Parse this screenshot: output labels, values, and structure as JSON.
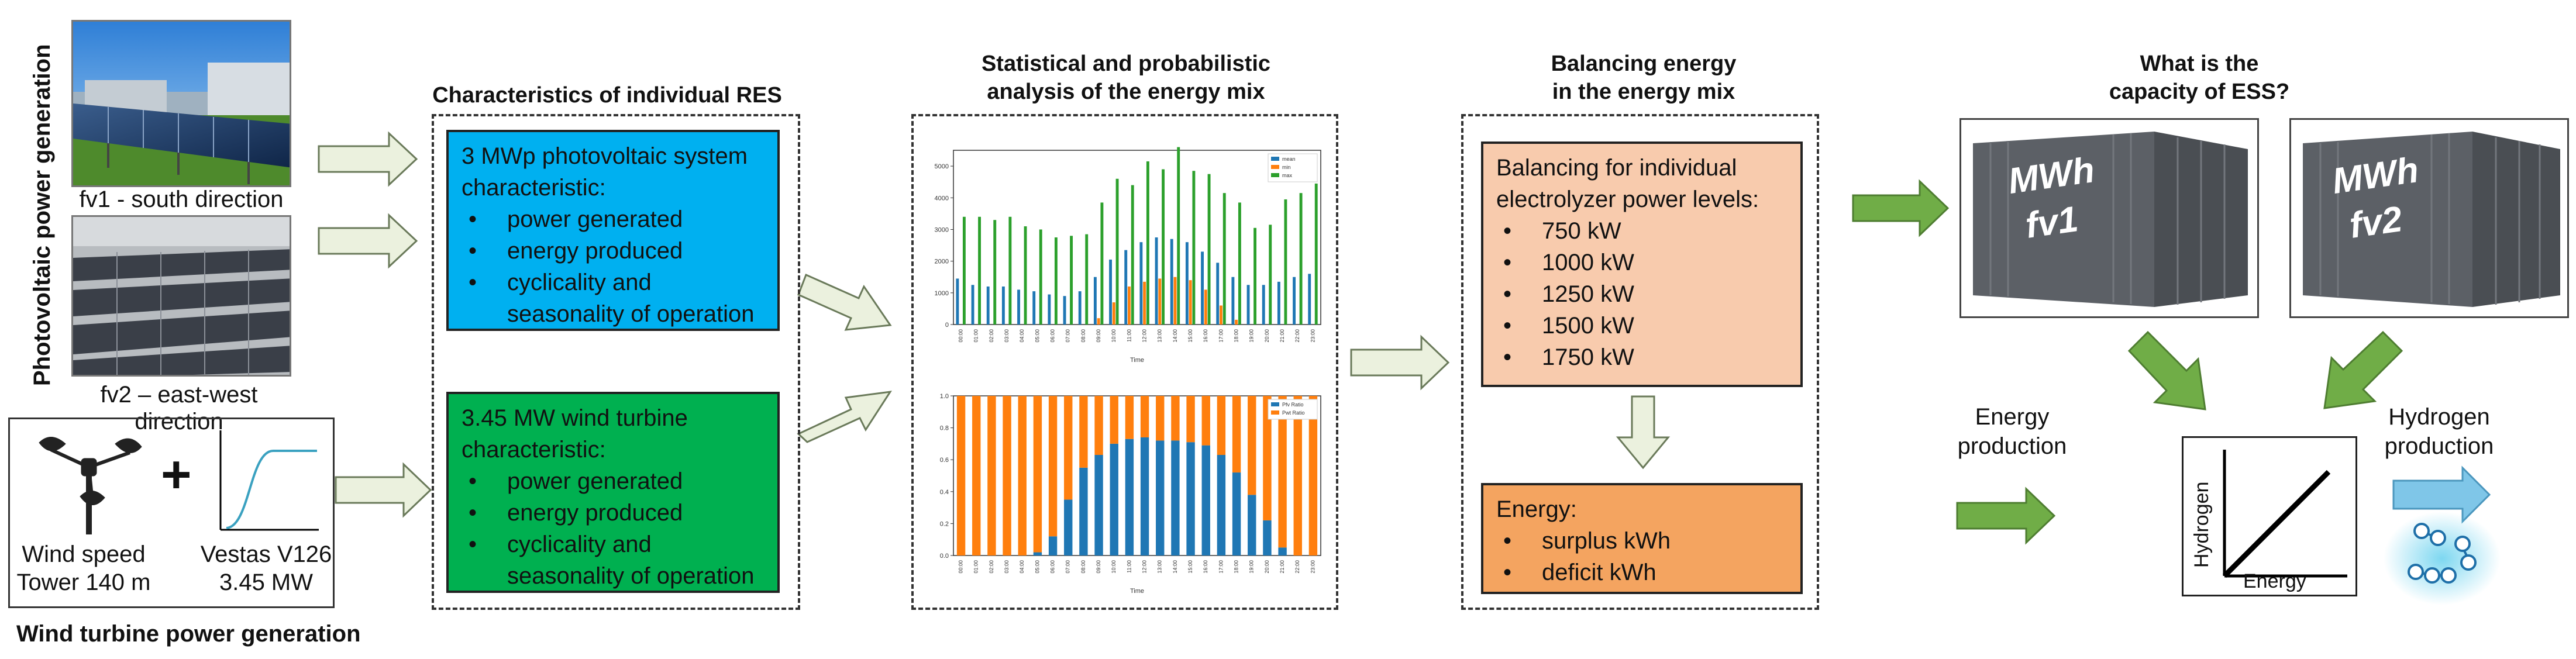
{
  "left_side": {
    "vertical_label": "Photovoltaic power generation",
    "photo1_caption": "fv1 - south direction",
    "photo2_caption": "fv2 – east-west direction",
    "wind_speed_label": "Wind speed",
    "tower_label": "Tower 140 m",
    "plus_symbol": "+",
    "turbine_model": "Vestas V126",
    "turbine_power": "3.45 MW",
    "wind_generation_label": "Wind turbine power generation"
  },
  "res_section": {
    "title": "Characteristics of individual RES",
    "pv_box": {
      "heading": "3 MWp photovoltaic system characteristic:",
      "items": [
        "power generated",
        "energy produced",
        "cyclicality and seasonality of operation"
      ],
      "color": "#00b0f0"
    },
    "wind_box": {
      "heading": "3.45 MW wind turbine characteristic:",
      "items": [
        "power generated",
        "energy produced",
        "cyclicality and seasonality of operation"
      ],
      "color": "#00b050"
    }
  },
  "analysis_section": {
    "title_line1": "Statistical and probabilistic",
    "title_line2": "analysis of the energy mix"
  },
  "balancing_section": {
    "title_line1": "Balancing energy",
    "title_line2": "in the energy mix",
    "levels_box": {
      "heading": "Balancing for individual electrolyzer power levels:",
      "items": [
        "750 kW",
        "1000 kW",
        "1250 kW",
        "1500 kW",
        "1750 kW"
      ],
      "color": "#f8cbad"
    },
    "energy_box": {
      "heading": "Energy:",
      "items": [
        "surplus kWh",
        "deficit kWh"
      ],
      "color": "#f4a460"
    }
  },
  "ess_section": {
    "title_line1": "What is the",
    "title_line2": "capacity of ESS?",
    "container1_line1": "MWh",
    "container1_line2": "fv1",
    "container2_line1": "MWh",
    "container2_line2": "fv2",
    "energy_production_line1": "Energy",
    "energy_production_line2": "production",
    "hydrogen_production_line1": "Hydrogen",
    "hydrogen_production_line2": "production",
    "plot_ylabel": "Hydrogen",
    "plot_xlabel": "Energy"
  },
  "chart_data": [
    {
      "type": "bar",
      "title": "",
      "xlabel": "Time",
      "ylabel": "",
      "ylim": [
        0,
        5500
      ],
      "yticks": [
        0,
        1000,
        2000,
        3000,
        4000,
        5000
      ],
      "legend": [
        "mean",
        "min",
        "max"
      ],
      "legend_position": "top-right",
      "colors": [
        "#1f77b4",
        "#ff7f0e",
        "#2ca02c"
      ],
      "categories": [
        "00:00",
        "01:00",
        "02:00",
        "03:00",
        "04:00",
        "05:00",
        "06:00",
        "07:00",
        "08:00",
        "09:00",
        "10:00",
        "11:00",
        "12:00",
        "13:00",
        "14:00",
        "15:00",
        "16:00",
        "17:00",
        "18:00",
        "19:00",
        "20:00",
        "21:00",
        "22:00",
        "23:00"
      ],
      "series": [
        {
          "name": "mean",
          "values": [
            1450,
            1250,
            1200,
            1200,
            1100,
            1050,
            950,
            900,
            1050,
            1500,
            2050,
            2350,
            2600,
            2750,
            2700,
            2600,
            2300,
            1950,
            1500,
            1250,
            1250,
            1350,
            1500,
            1600
          ]
        },
        {
          "name": "min",
          "values": [
            0,
            0,
            0,
            0,
            0,
            0,
            0,
            0,
            0,
            200,
            700,
            1200,
            1350,
            1450,
            1500,
            1400,
            1100,
            600,
            150,
            0,
            0,
            0,
            0,
            0
          ]
        },
        {
          "name": "max",
          "values": [
            3400,
            3400,
            3300,
            3400,
            3100,
            3000,
            2750,
            2800,
            2850,
            3850,
            4600,
            4400,
            5150,
            4900,
            5600,
            4850,
            4750,
            4150,
            3850,
            3050,
            3150,
            3950,
            4150,
            4450
          ]
        }
      ]
    },
    {
      "type": "bar",
      "stacked": true,
      "title": "",
      "xlabel": "Time",
      "ylabel": "",
      "ylim": [
        0,
        1.0
      ],
      "yticks": [
        0.0,
        0.2,
        0.4,
        0.6,
        0.8,
        1.0
      ],
      "legend": [
        "Pfv Ratio",
        "Pwt Ratio"
      ],
      "legend_position": "top-right",
      "colors": [
        "#1f77b4",
        "#ff7f0e"
      ],
      "categories": [
        "00:00",
        "01:00",
        "02:00",
        "03:00",
        "04:00",
        "05:00",
        "06:00",
        "07:00",
        "08:00",
        "09:00",
        "10:00",
        "11:00",
        "12:00",
        "13:00",
        "14:00",
        "15:00",
        "16:00",
        "17:00",
        "18:00",
        "19:00",
        "20:00",
        "21:00",
        "22:00",
        "23:00"
      ],
      "series": [
        {
          "name": "Pfv Ratio",
          "values": [
            0,
            0,
            0,
            0,
            0,
            0.02,
            0.12,
            0.35,
            0.55,
            0.63,
            0.7,
            0.73,
            0.74,
            0.72,
            0.72,
            0.71,
            0.69,
            0.63,
            0.52,
            0.38,
            0.22,
            0.05,
            0,
            0
          ]
        },
        {
          "name": "Pwt Ratio",
          "values": [
            1,
            1,
            1,
            1,
            1,
            0.98,
            0.88,
            0.65,
            0.45,
            0.37,
            0.3,
            0.27,
            0.26,
            0.28,
            0.28,
            0.29,
            0.31,
            0.37,
            0.48,
            0.62,
            0.78,
            0.95,
            1,
            1
          ]
        }
      ]
    }
  ]
}
